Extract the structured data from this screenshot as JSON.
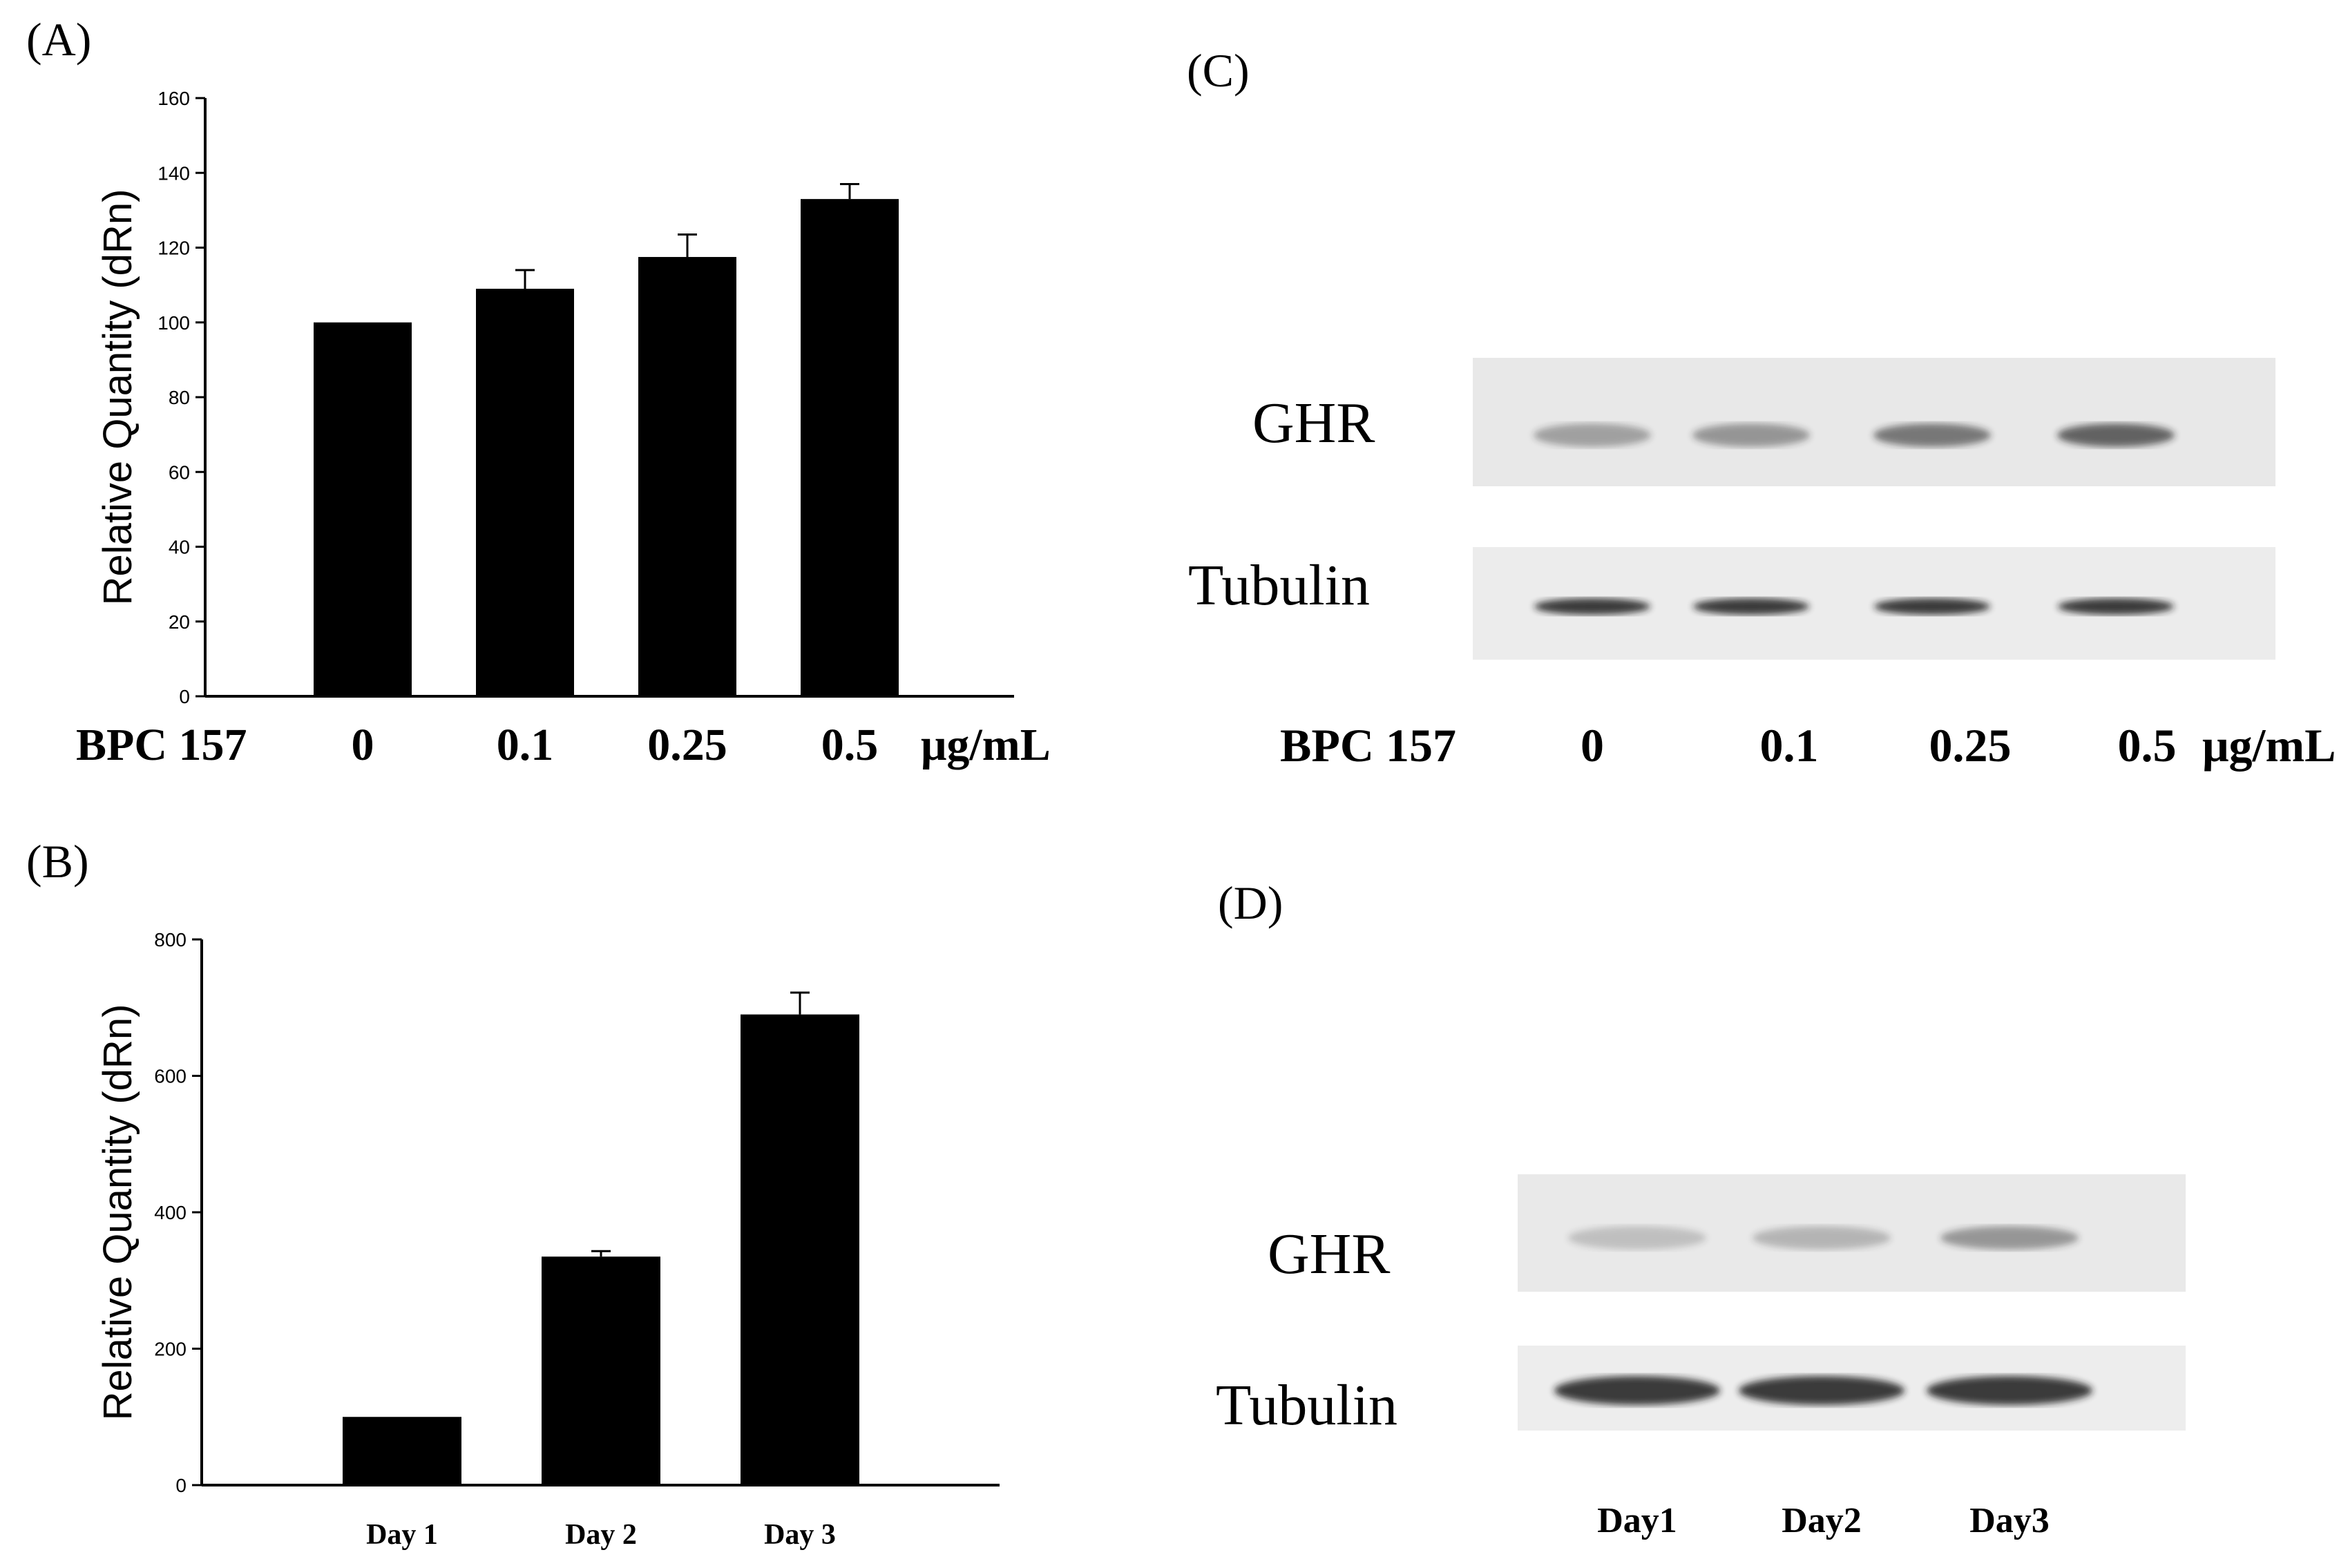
{
  "panels": {
    "a": "(A)",
    "b": "(B)",
    "c": "(C)",
    "d": "(D)"
  },
  "chart_data": [
    {
      "panel": "A",
      "type": "bar",
      "ylabel": "Relative Quantity (dRn)",
      "ylim": [
        0,
        160
      ],
      "yticks": [
        0,
        20,
        40,
        60,
        80,
        100,
        120,
        140,
        160
      ],
      "grid": false,
      "row_label": "BPC 157",
      "unit_label": "μg/mL",
      "categories": [
        "0",
        "0.1",
        "0.25",
        "0.5"
      ],
      "values": [
        100,
        109,
        117.5,
        133
      ],
      "errors": [
        0,
        5,
        6,
        4
      ],
      "bar_color": "#000000"
    },
    {
      "panel": "B",
      "type": "bar",
      "ylabel": "Relative Quantity (dRn)",
      "ylim": [
        0,
        800
      ],
      "yticks": [
        0,
        200,
        400,
        600,
        800
      ],
      "grid": false,
      "categories": [
        "Day 1",
        "Day 2",
        "Day 3"
      ],
      "values": [
        100,
        335,
        690
      ],
      "errors": [
        0,
        8,
        32
      ],
      "bar_color": "#000000"
    }
  ],
  "blot_c": {
    "rows": [
      "GHR",
      "Tubulin"
    ],
    "row_label": "BPC 157",
    "lanes": [
      "0",
      "0.1",
      "0.25",
      "0.5"
    ],
    "unit_label": "μg/mL",
    "ghr_intensity": [
      0.35,
      0.4,
      0.55,
      0.65
    ],
    "tubulin_intensity": [
      0.85,
      0.85,
      0.85,
      0.85
    ]
  },
  "blot_d": {
    "rows": [
      "GHR",
      "Tubulin"
    ],
    "lanes": [
      "Day1",
      "Day2",
      "Day3"
    ],
    "ghr_intensity": [
      0.2,
      0.25,
      0.4
    ],
    "tubulin_intensity": [
      0.85,
      0.85,
      0.85
    ]
  }
}
